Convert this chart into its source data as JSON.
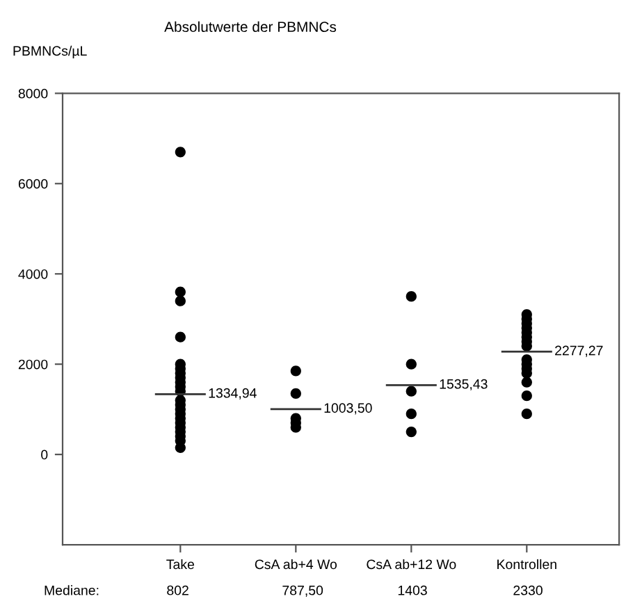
{
  "chart_data": {
    "type": "scatter",
    "title": "Absolutwerte der PBMNCs",
    "ylabel": "PBMNCs/µL",
    "categories": [
      "Take",
      "CsA ab+4 Wo",
      "CsA ab+12 Wo",
      "Kontrollen"
    ],
    "series": [
      {
        "color": "#000000",
        "x": [
          "Take",
          "Take",
          "Take",
          "Take",
          "Take",
          "Take",
          "Take",
          "Take",
          "Take",
          "Take",
          "Take",
          "Take",
          "Take",
          "Take",
          "Take",
          "Take",
          "Take",
          "Take",
          "Take",
          "Take",
          "Take",
          "Take",
          "Take"
        ],
        "values": [
          6700,
          3600,
          3400,
          2600,
          2000,
          1900,
          1800,
          1700,
          1600,
          1500,
          1400,
          null,
          1200,
          1100,
          1000,
          900,
          800,
          700,
          600,
          500,
          400,
          300,
          150
        ]
      },
      {
        "color": "#000000",
        "x": [
          "CsA ab+4 Wo",
          "CsA ab+4 Wo",
          "CsA ab+4 Wo",
          "CsA ab+4 Wo",
          "CsA ab+4 Wo"
        ],
        "values": [
          1850,
          1350,
          800,
          700,
          600
        ]
      },
      {
        "color": "#000000",
        "x": [
          "CsA ab+12 Wo",
          "CsA ab+12 Wo",
          "CsA ab+12 Wo",
          "CsA ab+12 Wo",
          "CsA ab+12 Wo",
          "CsA ab+12 Wo"
        ],
        "values": [
          3500,
          2000,
          null,
          1400,
          900,
          500
        ]
      },
      {
        "color": "#000000",
        "x": [
          "Kontrollen",
          "Kontrollen",
          "Kontrollen",
          "Kontrollen",
          "Kontrollen",
          "Kontrollen",
          "Kontrollen",
          "Kontrollen",
          "Kontrollen",
          "Kontrollen",
          "Kontrollen",
          "Kontrollen",
          "Kontrollen",
          "Kontrollen",
          "Kontrollen",
          "Kontrollen",
          "Kontrollen"
        ],
        "values": [
          3100,
          3000,
          2900,
          2800,
          2700,
          2600,
          2500,
          2400,
          null,
          null,
          2100,
          2000,
          1900,
          1800,
          1600,
          1300,
          900
        ]
      }
    ],
    "marker": "circle",
    "ylim": [
      -2000,
      8000
    ],
    "yticks": [
      0,
      2000,
      4000,
      6000,
      8000
    ],
    "grid": false,
    "legend": false,
    "annotations": [
      {
        "text": "1334,94",
        "x": "Take",
        "y": 1334.94
      },
      {
        "text": "1003,50",
        "x": "CsA ab+4 Wo",
        "y": 1003.5
      },
      {
        "text": "1535,43",
        "x": "CsA ab+12 Wo",
        "y": 1535.43
      },
      {
        "text": "2277,27",
        "x": "Kontrollen",
        "y": 2277.27
      },
      "Mediane:",
      "802",
      "787,50",
      "1403",
      "2330"
    ]
  }
}
